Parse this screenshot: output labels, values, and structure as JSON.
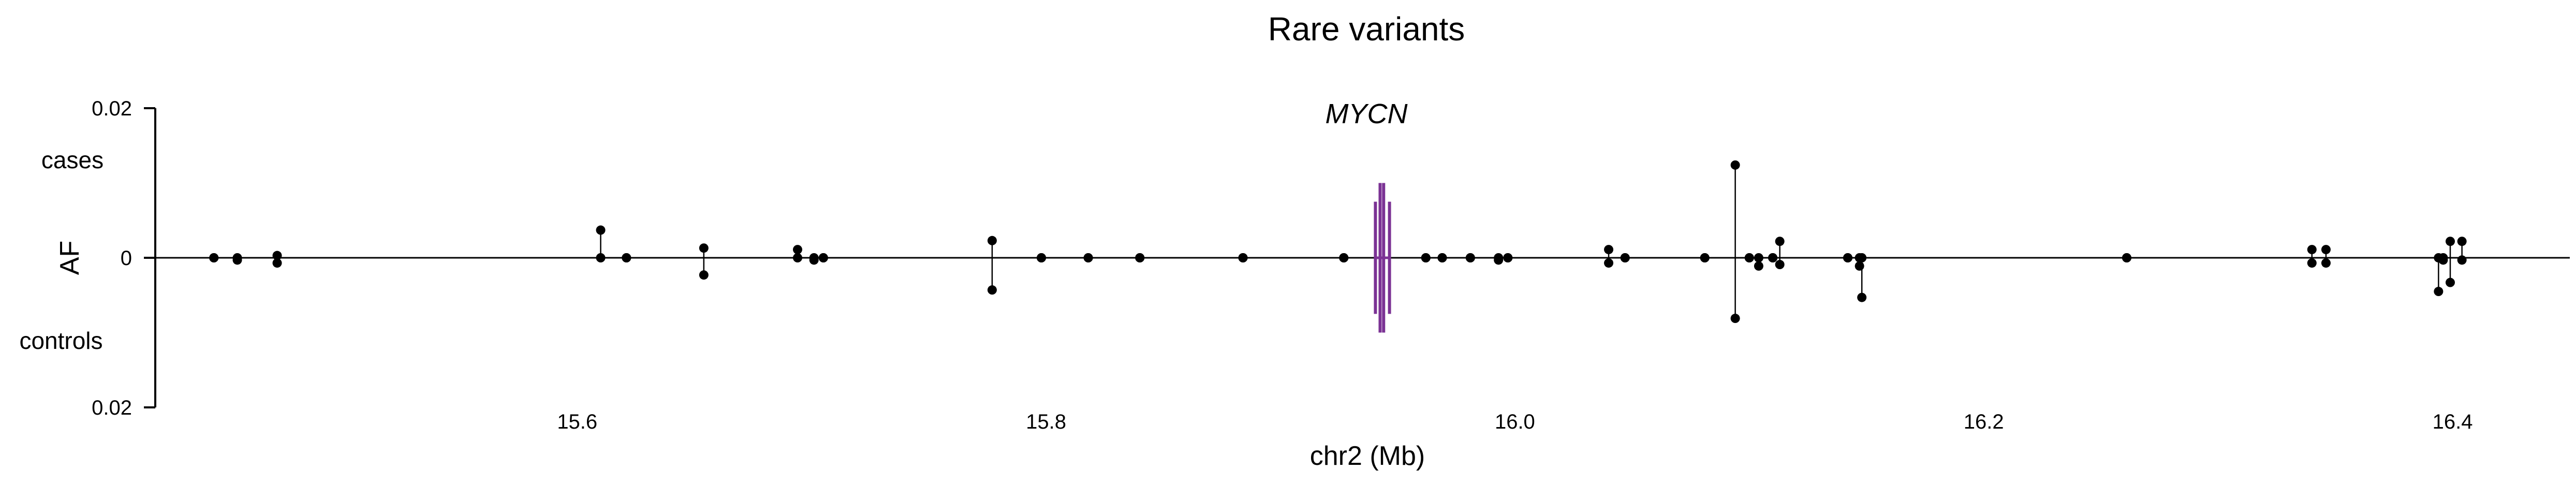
{
  "chart_data": {
    "type": "scatter",
    "title": "Rare variants",
    "xlabel": "chr2 (Mb)",
    "ylabel": "AF",
    "xlim": [
      15.42,
      16.45
    ],
    "ylim": [
      -0.02,
      0.02
    ],
    "x_ticks": [
      {
        "value": 15.6,
        "label": "15.6"
      },
      {
        "value": 15.8,
        "label": "15.8"
      },
      {
        "value": 16.0,
        "label": "16.0"
      },
      {
        "value": 16.2,
        "label": "16.2"
      },
      {
        "value": 16.4,
        "label": "16.4"
      }
    ],
    "y_ticks": [
      {
        "value": 0.02,
        "label": "0.02"
      },
      {
        "value": 0,
        "label": "0"
      },
      {
        "value": -0.02,
        "label": "0.02"
      }
    ],
    "upper_label": "cases",
    "lower_label": "controls",
    "gene": {
      "name": "MYCN",
      "color": "#7b3294",
      "exons": [
        15.9405,
        15.9425,
        15.944,
        15.9465
      ]
    },
    "point_color": "#000000",
    "variants": [
      {
        "x": 15.445,
        "cases": 0.0,
        "controls": 0.0
      },
      {
        "x": 15.455,
        "cases": 0.0,
        "controls": -0.0003
      },
      {
        "x": 15.472,
        "cases": 0.0003,
        "controls": -0.0007
      },
      {
        "x": 15.61,
        "cases": 0.0037,
        "controls": 0.0
      },
      {
        "x": 15.621,
        "cases": 0.0,
        "controls": 0.0
      },
      {
        "x": 15.654,
        "cases": 0.0013,
        "controls": -0.0023
      },
      {
        "x": 15.694,
        "cases": 0.0011,
        "controls": 0.0
      },
      {
        "x": 15.701,
        "cases": 0.0,
        "controls": -0.0003
      },
      {
        "x": 15.705,
        "cases": 0.0,
        "controls": 0.0
      },
      {
        "x": 15.777,
        "cases": 0.0023,
        "controls": -0.0043
      },
      {
        "x": 15.798,
        "cases": 0.0,
        "controls": 0.0
      },
      {
        "x": 15.818,
        "cases": 0.0,
        "controls": 0.0
      },
      {
        "x": 15.84,
        "cases": 0.0,
        "controls": 0.0
      },
      {
        "x": 15.884,
        "cases": 0.0,
        "controls": 0.0
      },
      {
        "x": 15.927,
        "cases": 0.0,
        "controls": 0.0
      },
      {
        "x": 15.962,
        "cases": 0.0,
        "controls": 0.0
      },
      {
        "x": 15.969,
        "cases": 0.0,
        "controls": 0.0
      },
      {
        "x": 15.981,
        "cases": 0.0,
        "controls": 0.0
      },
      {
        "x": 15.993,
        "cases": 0.0,
        "controls": -0.0003
      },
      {
        "x": 15.997,
        "cases": 0.0,
        "controls": 0.0
      },
      {
        "x": 16.04,
        "cases": 0.0011,
        "controls": -0.0007
      },
      {
        "x": 16.047,
        "cases": 0.0,
        "controls": 0.0
      },
      {
        "x": 16.081,
        "cases": 0.0,
        "controls": 0.0
      },
      {
        "x": 16.094,
        "cases": 0.0124,
        "controls": -0.0081
      },
      {
        "x": 16.1,
        "cases": 0.0,
        "controls": 0.0
      },
      {
        "x": 16.104,
        "cases": 0.0,
        "controls": -0.0011
      },
      {
        "x": 16.11,
        "cases": 0.0,
        "controls": 0.0
      },
      {
        "x": 16.113,
        "cases": 0.0022,
        "controls": -0.0009
      },
      {
        "x": 16.142,
        "cases": 0.0,
        "controls": 0.0
      },
      {
        "x": 16.147,
        "cases": 0.0,
        "controls": -0.0011
      },
      {
        "x": 16.148,
        "cases": 0.0,
        "controls": -0.0053
      },
      {
        "x": 16.261,
        "cases": 0.0,
        "controls": 0.0
      },
      {
        "x": 16.34,
        "cases": 0.0011,
        "controls": -0.0007
      },
      {
        "x": 16.346,
        "cases": 0.0011,
        "controls": -0.0007
      },
      {
        "x": 16.394,
        "cases": 0.0,
        "controls": -0.0045
      },
      {
        "x": 16.396,
        "cases": 0.0,
        "controls": -0.0003
      },
      {
        "x": 16.399,
        "cases": 0.0022,
        "controls": -0.0033
      },
      {
        "x": 16.404,
        "cases": 0.0022,
        "controls": -0.0003
      }
    ]
  }
}
